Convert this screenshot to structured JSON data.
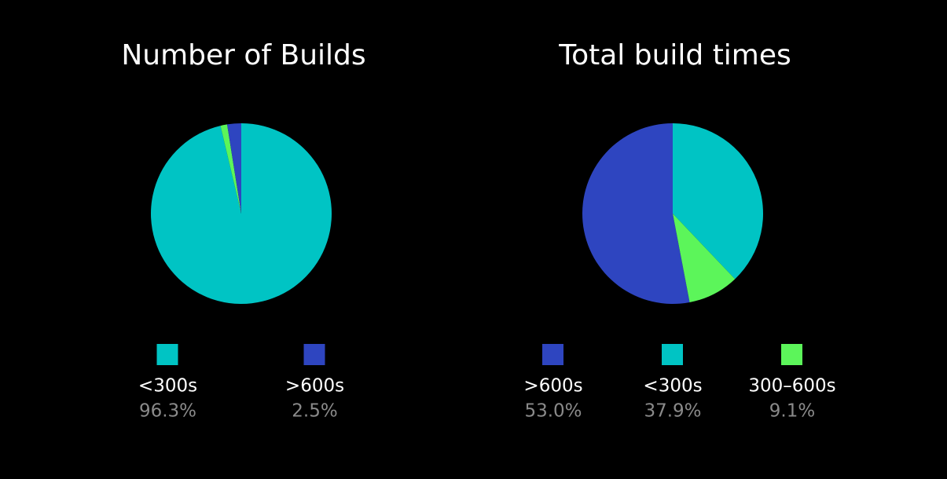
{
  "chart_data": [
    {
      "type": "pie",
      "title": "Number of Builds",
      "categories": [
        "<300s",
        null,
        ">600s"
      ],
      "values": [
        96.3,
        1.2,
        2.5
      ],
      "value_labels": [
        "96.3%",
        null,
        "2.5%"
      ],
      "colors": [
        "#00c4c4",
        "#5cf55a",
        "#2e45c0"
      ],
      "startangle": 0
    },
    {
      "type": "pie",
      "title": "Total build times",
      "categories": [
        ">600s",
        "<300s",
        "300–600s"
      ],
      "values": [
        53.0,
        37.9,
        9.1
      ],
      "value_labels": [
        "53.0%",
        "37.9%",
        "9.1%"
      ],
      "colors": [
        "#2e45c0",
        "#00c4c4",
        "#5cf55a"
      ],
      "startangle": 169.2
    }
  ]
}
